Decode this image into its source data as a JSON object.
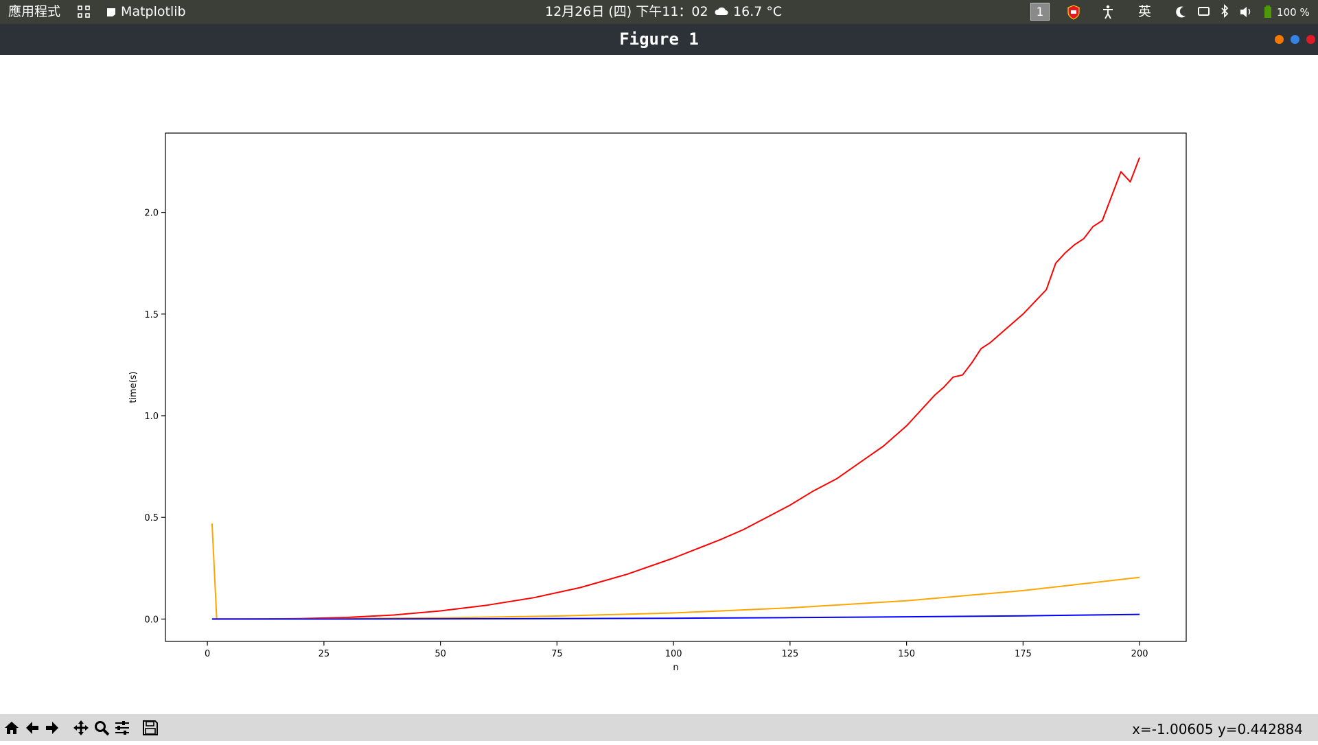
{
  "topbar": {
    "apps_label": "應用程式",
    "app_name": "Matplotlib",
    "datetime": "12月26日 (四) 下午11：02",
    "weather": "16.7 °C",
    "workspace": "1",
    "input_method": "英",
    "battery": "100 %"
  },
  "window": {
    "title": "Figure 1",
    "dot_colors": [
      "#f57900",
      "#3584e4",
      "#e01b24"
    ]
  },
  "toolbar": {
    "coords": "x=-1.00605   y=0.442884"
  },
  "chart_data": {
    "type": "line",
    "xlabel": "n",
    "ylabel": "time(s)",
    "xlim": [
      -9,
      210
    ],
    "ylim": [
      -0.11,
      2.39
    ],
    "xticks": [
      0,
      25,
      50,
      75,
      100,
      125,
      150,
      175,
      200
    ],
    "yticks": [
      0.0,
      0.5,
      1.0,
      1.5,
      2.0
    ],
    "grid": false,
    "legend": "none",
    "series": [
      {
        "color": "#ff0000",
        "x": [
          1,
          10,
          20,
          30,
          40,
          50,
          60,
          70,
          80,
          90,
          100,
          105,
          110,
          115,
          120,
          125,
          130,
          135,
          140,
          145,
          150,
          152,
          154,
          156,
          158,
          160,
          162,
          164,
          166,
          168,
          170,
          175,
          180,
          182,
          184,
          186,
          188,
          190,
          192,
          194,
          196,
          198,
          200
        ],
        "y": [
          0.0,
          0.0,
          0.002,
          0.008,
          0.02,
          0.04,
          0.068,
          0.105,
          0.155,
          0.22,
          0.3,
          0.345,
          0.39,
          0.44,
          0.5,
          0.56,
          0.63,
          0.69,
          0.77,
          0.85,
          0.95,
          1.0,
          1.05,
          1.1,
          1.14,
          1.19,
          1.2,
          1.26,
          1.33,
          1.36,
          1.4,
          1.5,
          1.62,
          1.75,
          1.8,
          1.84,
          1.87,
          1.93,
          1.96,
          2.08,
          2.2,
          2.15,
          2.27
        ]
      },
      {
        "color": "#ffa500",
        "x": [
          1,
          2,
          3,
          25,
          50,
          75,
          100,
          125,
          150,
          175,
          200
        ],
        "y": [
          0.47,
          0.0,
          0.0,
          0.001,
          0.006,
          0.015,
          0.03,
          0.055,
          0.09,
          0.14,
          0.205
        ]
      },
      {
        "color": "#0000ff",
        "x": [
          1,
          25,
          50,
          75,
          100,
          125,
          150,
          175,
          200
        ],
        "y": [
          0.0,
          0.0,
          0.001,
          0.002,
          0.004,
          0.007,
          0.011,
          0.016,
          0.023
        ]
      }
    ]
  }
}
